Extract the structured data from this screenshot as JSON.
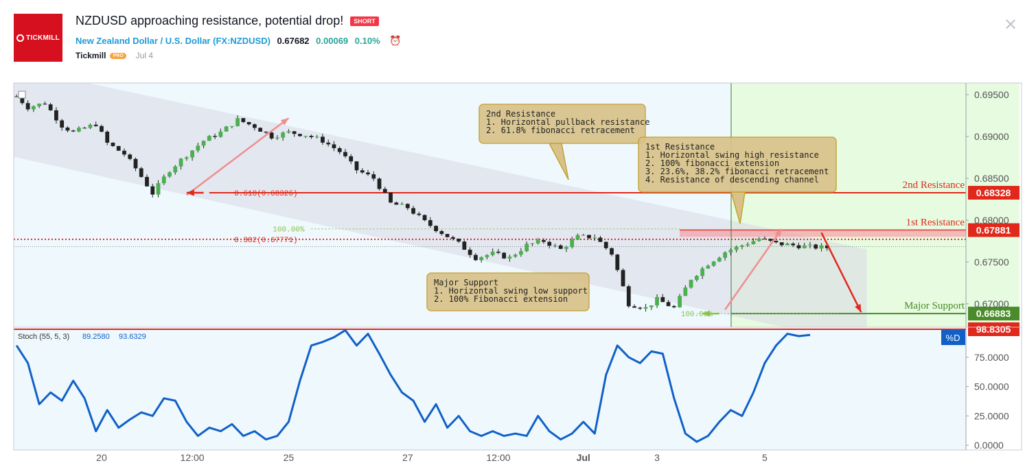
{
  "header": {
    "brand": "TICKMILL",
    "title": "NZDUSD approaching resistance, potential drop!",
    "badge": "SHORT",
    "symbol_name": "New Zealand Dollar / U.S. Dollar",
    "symbol_code": "FX:NZDUSD",
    "price": "0.67682",
    "change": "0.00069",
    "change_pct": "0.10%",
    "author": "Tickmill",
    "author_badge": "PRO",
    "date": "Jul 4"
  },
  "colors": {
    "resistance": "#e0281b",
    "support": "#4a8c2b",
    "stoch": "#1060c8",
    "price_line": "#e0281b"
  },
  "chart_data": [
    {
      "type": "candlestick",
      "title": "NZDUSD",
      "ylim": [
        0.6672,
        0.6964
      ],
      "y_ticks": [
        "0.69500",
        "0.69000",
        "0.68500",
        "0.68000",
        "0.67500",
        "0.67000"
      ],
      "x_ticks": [
        "20",
        "12:00",
        "25",
        "27",
        "12:00",
        "Jul",
        "3",
        "5"
      ],
      "close_path": [
        [
          0,
          0.6948
        ],
        [
          2,
          0.6935
        ],
        [
          5,
          0.694
        ],
        [
          8,
          0.6913
        ],
        [
          10,
          0.6905
        ],
        [
          14,
          0.6915
        ],
        [
          16,
          0.6892
        ],
        [
          19,
          0.6879
        ],
        [
          21,
          0.6862
        ],
        [
          24,
          0.6832
        ],
        [
          27,
          0.686
        ],
        [
          30,
          0.6878
        ],
        [
          33,
          0.6895
        ],
        [
          36,
          0.6905
        ],
        [
          39,
          0.692
        ],
        [
          42,
          0.6912
        ],
        [
          45,
          0.69
        ],
        [
          48,
          0.6905
        ],
        [
          51,
          0.6902
        ],
        [
          54,
          0.6895
        ],
        [
          57,
          0.6882
        ],
        [
          60,
          0.686
        ],
        [
          63,
          0.685
        ],
        [
          66,
          0.682
        ],
        [
          69,
          0.6815
        ],
        [
          72,
          0.6798
        ],
        [
          75,
          0.6785
        ],
        [
          78,
          0.6772
        ],
        [
          81,
          0.6755
        ],
        [
          84,
          0.676
        ],
        [
          87,
          0.6755
        ],
        [
          90,
          0.677
        ],
        [
          93,
          0.6775
        ],
        [
          96,
          0.6765
        ],
        [
          99,
          0.678
        ],
        [
          102,
          0.678
        ],
        [
          105,
          0.676
        ],
        [
          108,
          0.67
        ],
        [
          111,
          0.6695
        ],
        [
          113,
          0.6705
        ],
        [
          116,
          0.6695
        ],
        [
          119,
          0.673
        ],
        [
          122,
          0.6748
        ],
        [
          125,
          0.6762
        ],
        [
          128,
          0.677
        ],
        [
          131,
          0.6778
        ],
        [
          134,
          0.6772
        ],
        [
          137,
          0.677
        ],
        [
          140,
          0.6768
        ],
        [
          143,
          0.6767
        ]
      ],
      "bars_total": 168,
      "levels": [
        {
          "name": "2nd Resistance",
          "value": 0.68328,
          "label": "0.68328"
        },
        {
          "name": "1st Resistance",
          "value": 0.67881,
          "label": "0.67881"
        },
        {
          "name": "Major Support",
          "value": 0.66883,
          "label": "0.66883"
        }
      ],
      "fib_levels": [
        {
          "label": "0.618(0.68326)",
          "value": 0.68326
        },
        {
          "label": "0.382(0.67771)",
          "value": 0.67771
        },
        {
          "label": "100.00%",
          "value": 0.67895
        },
        {
          "label": "100.00%",
          "value": 0.66883
        }
      ],
      "current_line": 0.67682,
      "annotations": [
        {
          "title": "2nd Resistance",
          "lines": [
            "1. Horizontal pullback resistance",
            "2. 61.8% fibonacci retracement"
          ]
        },
        {
          "title": "1st Resistance",
          "lines": [
            "1. Horizontal swing high resistance",
            "2. 100% fibonacci extension",
            "3. 23.6%, 38.2% fibonacci retracement",
            "4. Resistance of descending channel"
          ]
        },
        {
          "title": "Major Support",
          "lines": [
            "1. Horizontal swing low support",
            "2. 100% Fibonacci extension"
          ]
        }
      ]
    },
    {
      "type": "line",
      "title": "Stoch (55, 5, 3)",
      "values_label": [
        "89.2580",
        "93.6329"
      ],
      "ylim": [
        -4,
        100
      ],
      "y_ticks": [
        "75.0000",
        "50.0000",
        "25.0000",
        "0.0000"
      ],
      "current_label": "98.8305",
      "series_name": "%D",
      "series": [
        [
          0,
          85
        ],
        [
          2,
          70
        ],
        [
          4,
          35
        ],
        [
          6,
          45
        ],
        [
          8,
          38
        ],
        [
          10,
          55
        ],
        [
          12,
          40
        ],
        [
          14,
          12
        ],
        [
          16,
          30
        ],
        [
          18,
          15
        ],
        [
          20,
          22
        ],
        [
          22,
          28
        ],
        [
          24,
          25
        ],
        [
          26,
          40
        ],
        [
          28,
          38
        ],
        [
          30,
          20
        ],
        [
          32,
          8
        ],
        [
          34,
          15
        ],
        [
          36,
          12
        ],
        [
          38,
          18
        ],
        [
          40,
          8
        ],
        [
          42,
          12
        ],
        [
          44,
          5
        ],
        [
          46,
          8
        ],
        [
          48,
          20
        ],
        [
          50,
          55
        ],
        [
          52,
          85
        ],
        [
          54,
          88
        ],
        [
          56,
          92
        ],
        [
          58,
          98
        ],
        [
          60,
          85
        ],
        [
          62,
          95
        ],
        [
          64,
          78
        ],
        [
          66,
          60
        ],
        [
          68,
          45
        ],
        [
          70,
          38
        ],
        [
          72,
          20
        ],
        [
          74,
          35
        ],
        [
          76,
          15
        ],
        [
          78,
          25
        ],
        [
          80,
          12
        ],
        [
          82,
          8
        ],
        [
          84,
          12
        ],
        [
          86,
          8
        ],
        [
          88,
          10
        ],
        [
          90,
          8
        ],
        [
          92,
          25
        ],
        [
          94,
          12
        ],
        [
          96,
          5
        ],
        [
          98,
          10
        ],
        [
          100,
          20
        ],
        [
          102,
          10
        ],
        [
          104,
          60
        ],
        [
          106,
          85
        ],
        [
          108,
          75
        ],
        [
          110,
          70
        ],
        [
          112,
          80
        ],
        [
          114,
          78
        ],
        [
          116,
          40
        ],
        [
          118,
          10
        ],
        [
          120,
          3
        ],
        [
          122,
          8
        ],
        [
          124,
          20
        ],
        [
          126,
          30
        ],
        [
          128,
          25
        ],
        [
          130,
          45
        ],
        [
          132,
          70
        ],
        [
          134,
          85
        ],
        [
          136,
          95
        ],
        [
          138,
          93
        ],
        [
          140,
          94
        ]
      ]
    }
  ]
}
